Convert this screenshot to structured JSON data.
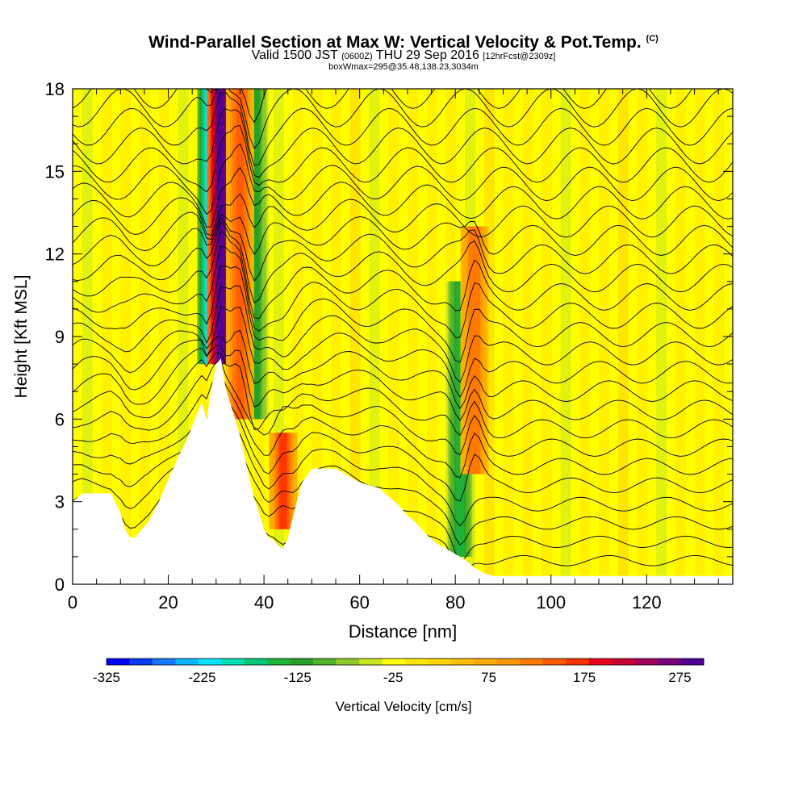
{
  "header": {
    "title": "Wind-Parallel Section at Max W: Vertical Velocity & Pot.Temp.",
    "title_suffix": "(C)",
    "valid_prefix": "Valid 1500 JST",
    "valid_utc": "(0600Z)",
    "valid_date": "THU 29 Sep 2016",
    "forecast": "[12hrFcst@2309z]",
    "box_info": "boxWmax=295@35.48,138.23,3034m"
  },
  "chart_data": {
    "type": "heatmap",
    "xlabel": "Distance [nm]",
    "ylabel": "Height [Kft MSL]",
    "xlim": [
      0,
      138
    ],
    "ylim": [
      0,
      18
    ],
    "x_ticks": [
      "0",
      "20",
      "40",
      "60",
      "80",
      "100",
      "120"
    ],
    "y_ticks": [
      "0",
      "3",
      "6",
      "9",
      "12",
      "15",
      "18"
    ],
    "terrain": {
      "x": [
        0,
        2,
        8,
        10,
        11,
        12,
        13,
        14,
        16,
        18,
        20,
        22,
        24,
        26,
        27,
        28,
        29,
        30,
        31,
        32,
        34,
        35,
        36,
        37,
        38,
        39,
        40,
        41,
        42,
        43,
        44,
        45,
        46,
        47,
        48,
        50,
        52,
        55,
        58,
        60,
        62,
        64,
        66,
        68,
        70,
        72,
        74,
        76,
        78,
        80,
        82,
        84,
        86,
        88,
        90,
        100,
        110,
        120,
        130,
        138
      ],
      "height_kft": [
        3.0,
        3.3,
        3.3,
        2.6,
        2.0,
        1.7,
        1.7,
        1.9,
        2.3,
        3.0,
        3.8,
        4.6,
        5.3,
        6.2,
        6.6,
        6.0,
        7.1,
        8.0,
        8.2,
        7.1,
        6.0,
        5.4,
        4.6,
        3.8,
        3.1,
        2.6,
        2.0,
        1.7,
        1.6,
        1.4,
        1.3,
        1.7,
        2.4,
        3.1,
        3.7,
        4.2,
        4.2,
        4.2,
        3.9,
        3.7,
        3.6,
        3.5,
        3.2,
        2.9,
        2.5,
        2.2,
        1.8,
        1.5,
        1.3,
        1.1,
        0.9,
        0.6,
        0.4,
        0.3,
        0.3,
        0.3,
        0.3,
        0.3,
        0.3,
        0.3
      ]
    },
    "updraft_bands": [
      {
        "center_x": 31,
        "top_kft": 18,
        "bottom_kft": 8,
        "peak_w_cms": 295
      },
      {
        "center_x": 35,
        "top_kft": 18,
        "bottom_kft": 6,
        "peak_w_cms": 150
      },
      {
        "center_x": 44,
        "top_kft": 5.5,
        "bottom_kft": 2,
        "peak_w_cms": 160
      },
      {
        "center_x": 84,
        "top_kft": 13,
        "bottom_kft": 4,
        "peak_w_cms": 130
      }
    ],
    "downdraft_bands": [
      {
        "center_x": 29,
        "top_kft": 18,
        "bottom_kft": 8,
        "peak_w_cms": -260
      },
      {
        "center_x": 38,
        "top_kft": 18,
        "bottom_kft": 6,
        "peak_w_cms": -130
      },
      {
        "center_x": 81,
        "top_kft": 11,
        "bottom_kft": 1,
        "peak_w_cms": -140
      }
    ],
    "isentropes_count": 26,
    "colorbar": {
      "label": "Vertical Velocity [cm/s]",
      "tick_labels": [
        "-325",
        "-225",
        "-125",
        "-25",
        "75",
        "175",
        "275"
      ],
      "min": -325,
      "max": 300,
      "colors": [
        "#0000ff",
        "#0a3cff",
        "#1478ff",
        "#00b4ff",
        "#00e6ff",
        "#00dcb4",
        "#00c878",
        "#1eb43c",
        "#28a028",
        "#50b428",
        "#8cc828",
        "#c8e61e",
        "#ffff00",
        "#ffe600",
        "#ffd200",
        "#ffbe00",
        "#ffaa00",
        "#ff9600",
        "#ff7800",
        "#ff5a00",
        "#ff3200",
        "#e6001e",
        "#c80032",
        "#a0005a",
        "#780078",
        "#500096"
      ]
    }
  }
}
